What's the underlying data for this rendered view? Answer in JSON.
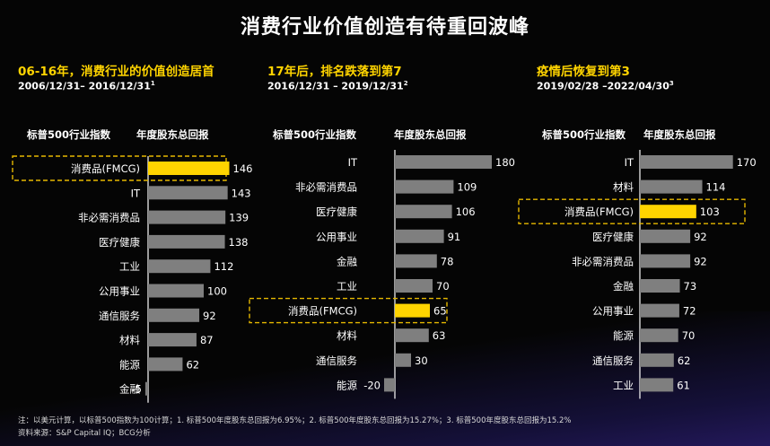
{
  "title": "消费行业价值创造有待重回波峰",
  "colors": {
    "bar": "#7f7f7f",
    "highlight": "#ffd400",
    "axis": "#ffffff",
    "dash": "#e6b800"
  },
  "chart_data": [
    {
      "type": "bar",
      "orientation": "horizontal",
      "heading": "06-16年，消费行业的价值创造居首",
      "period": "2006/12/31– 2016/12/31",
      "period_note": "1",
      "col_left": "标普500行业指数",
      "col_right": "年度股东总回报",
      "categories": [
        "消费品(FMCG)",
        "IT",
        "非必需消费品",
        "医疗健康",
        "工业",
        "公用事业",
        "通信服务",
        "材料",
        "能源",
        "金融"
      ],
      "values": [
        146,
        143,
        139,
        138,
        112,
        100,
        92,
        87,
        62,
        -5
      ],
      "highlight": "消费品(FMCG)"
    },
    {
      "type": "bar",
      "orientation": "horizontal",
      "heading": "17年后，排名跌落到第7",
      "period": "2016/12/31 – 2019/12/31",
      "period_note": "2",
      "col_left": "标普500行业指数",
      "col_right": "年度股东总回报",
      "categories": [
        "IT",
        "非必需消费品",
        "医疗健康",
        "公用事业",
        "金融",
        "工业",
        "消费品(FMCG)",
        "材料",
        "通信服务",
        "能源"
      ],
      "values": [
        180,
        109,
        106,
        91,
        78,
        70,
        65,
        63,
        30,
        -20
      ],
      "highlight": "消费品(FMCG)"
    },
    {
      "type": "bar",
      "orientation": "horizontal",
      "heading": "疫情后恢复到第3",
      "period": "2019/02/28 –2022/04/30",
      "period_note": "3",
      "col_left": "标普500行业指数",
      "col_right": "年度股东总回报",
      "categories": [
        "IT",
        "材料",
        "消费品(FMCG)",
        "医疗健康",
        "非必需消费品",
        "金融",
        "公用事业",
        "能源",
        "通信服务",
        "工业"
      ],
      "values": [
        170,
        114,
        103,
        92,
        92,
        73,
        72,
        70,
        62,
        61
      ],
      "highlight": "消费品(FMCG)"
    }
  ],
  "footnote": "注：以美元计算，以标普500指数为100计算；1. 标普500年度股东总回报为6.95%；2. 标普500年度股东总回报为15.27%；3. 标普500年度股东总回报为15.2%",
  "source": "资料来源：S&P Capital IQ；BCG分析"
}
